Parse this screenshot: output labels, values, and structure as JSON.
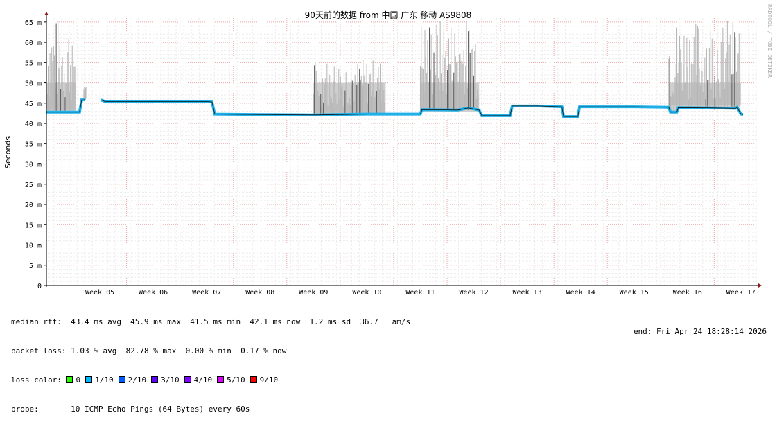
{
  "chart_data": {
    "type": "line",
    "title": "90天前的数据 from 中国 广东 移动 AS9808",
    "ylabel": "Seconds",
    "ylim": [
      0,
      66
    ],
    "y_ticks": [
      {
        "value": 0,
        "label": "0"
      },
      {
        "value": 5,
        "label": "5 m"
      },
      {
        "value": 10,
        "label": "10 m"
      },
      {
        "value": 15,
        "label": "15 m"
      },
      {
        "value": 20,
        "label": "20 m"
      },
      {
        "value": 25,
        "label": "25 m"
      },
      {
        "value": 30,
        "label": "30 m"
      },
      {
        "value": 35,
        "label": "35 m"
      },
      {
        "value": 40,
        "label": "40 m"
      },
      {
        "value": 45,
        "label": "45 m"
      },
      {
        "value": 50,
        "label": "50 m"
      },
      {
        "value": 55,
        "label": "55 m"
      },
      {
        "value": 60,
        "label": "60 m"
      },
      {
        "value": 65,
        "label": "65 m"
      }
    ],
    "x_range_weeks": [
      4.0,
      17.3
    ],
    "x_ticks": [
      {
        "value": 5,
        "label": "Week 05"
      },
      {
        "value": 6,
        "label": "Week 06"
      },
      {
        "value": 7,
        "label": "Week 07"
      },
      {
        "value": 8,
        "label": "Week 08"
      },
      {
        "value": 9,
        "label": "Week 09"
      },
      {
        "value": 10,
        "label": "Week 10"
      },
      {
        "value": 11,
        "label": "Week 11"
      },
      {
        "value": 12,
        "label": "Week 12"
      },
      {
        "value": 13,
        "label": "Week 13"
      },
      {
        "value": 14,
        "label": "Week 14"
      },
      {
        "value": 15,
        "label": "Week 15"
      },
      {
        "value": 16,
        "label": "Week 16"
      },
      {
        "value": 17,
        "label": "Week 17"
      }
    ],
    "grid": true,
    "median_rtt": [
      {
        "x": 4.0,
        "y": 42.8
      },
      {
        "x": 4.62,
        "y": 42.8
      },
      {
        "x": 4.66,
        "y": 45.8
      },
      {
        "x": 4.72,
        "y": 45.8
      },
      {
        "x": 5.0,
        "y": null
      },
      {
        "x": 5.02,
        "y": 45.8
      },
      {
        "x": 5.1,
        "y": 45.4
      },
      {
        "x": 7.0,
        "y": 45.4
      },
      {
        "x": 7.1,
        "y": 45.3
      },
      {
        "x": 7.15,
        "y": 42.3
      },
      {
        "x": 8.0,
        "y": 42.2
      },
      {
        "x": 9.0,
        "y": 42.1
      },
      {
        "x": 10.0,
        "y": 42.3
      },
      {
        "x": 11.0,
        "y": 42.3
      },
      {
        "x": 11.03,
        "y": 43.4
      },
      {
        "x": 11.7,
        "y": 43.3
      },
      {
        "x": 11.9,
        "y": 43.8
      },
      {
        "x": 12.1,
        "y": 43.3
      },
      {
        "x": 12.15,
        "y": 41.9
      },
      {
        "x": 12.68,
        "y": 41.9
      },
      {
        "x": 12.72,
        "y": 44.3
      },
      {
        "x": 13.2,
        "y": 44.3
      },
      {
        "x": 13.65,
        "y": 44.1
      },
      {
        "x": 13.68,
        "y": 41.7
      },
      {
        "x": 13.95,
        "y": 41.7
      },
      {
        "x": 13.98,
        "y": 44.1
      },
      {
        "x": 14.6,
        "y": 44.1
      },
      {
        "x": 15.0,
        "y": 44.1
      },
      {
        "x": 15.65,
        "y": 44.0
      },
      {
        "x": 15.68,
        "y": 42.8
      },
      {
        "x": 15.8,
        "y": 42.8
      },
      {
        "x": 15.83,
        "y": 43.9
      },
      {
        "x": 16.5,
        "y": 43.8
      },
      {
        "x": 16.9,
        "y": 43.7
      },
      {
        "x": 16.93,
        "y": 44.0
      },
      {
        "x": 17.0,
        "y": 42.3
      },
      {
        "x": 17.04,
        "y": 42.2
      }
    ],
    "max_rtt_regions": [
      {
        "x0": 4.0,
        "x1": 4.55,
        "top": 66
      },
      {
        "x0": 4.7,
        "x1": 4.75,
        "top": 49
      },
      {
        "x0": 9.0,
        "x1": 10.35,
        "top": 56
      },
      {
        "x0": 11.0,
        "x1": 12.1,
        "top": 66
      },
      {
        "x0": 15.65,
        "x1": 17.0,
        "top": 66
      }
    ],
    "loss_colors": [
      {
        "label": "0",
        "color": "#26ff00"
      },
      {
        "label": "1/10",
        "color": "#00b8ff"
      },
      {
        "label": "2/10",
        "color": "#0059ff"
      },
      {
        "label": "3/10",
        "color": "#5e00ff"
      },
      {
        "label": "4/10",
        "color": "#7e00ff"
      },
      {
        "label": "5/10",
        "color": "#dd00ff"
      },
      {
        "label": "9/10",
        "color": "#ff0000"
      }
    ]
  },
  "side_label": "RRDTOOL / TOBI OETIKER",
  "stats": {
    "median_rtt_line": "median rtt:  43.4 ms avg  45.9 ms max  41.5 ms min  42.1 ms now  1.2 ms sd  36.7   am/s",
    "packet_loss_line": "packet loss: 1.03 % avg  82.78 % max  0.00 % min  0.17 % now",
    "loss_color_label": "loss color:",
    "probe_line": "probe:       10 ICMP Echo Pings (64 Bytes) every 60s",
    "end_line": "end: Fri Apr 24 18:28:14 2026"
  }
}
